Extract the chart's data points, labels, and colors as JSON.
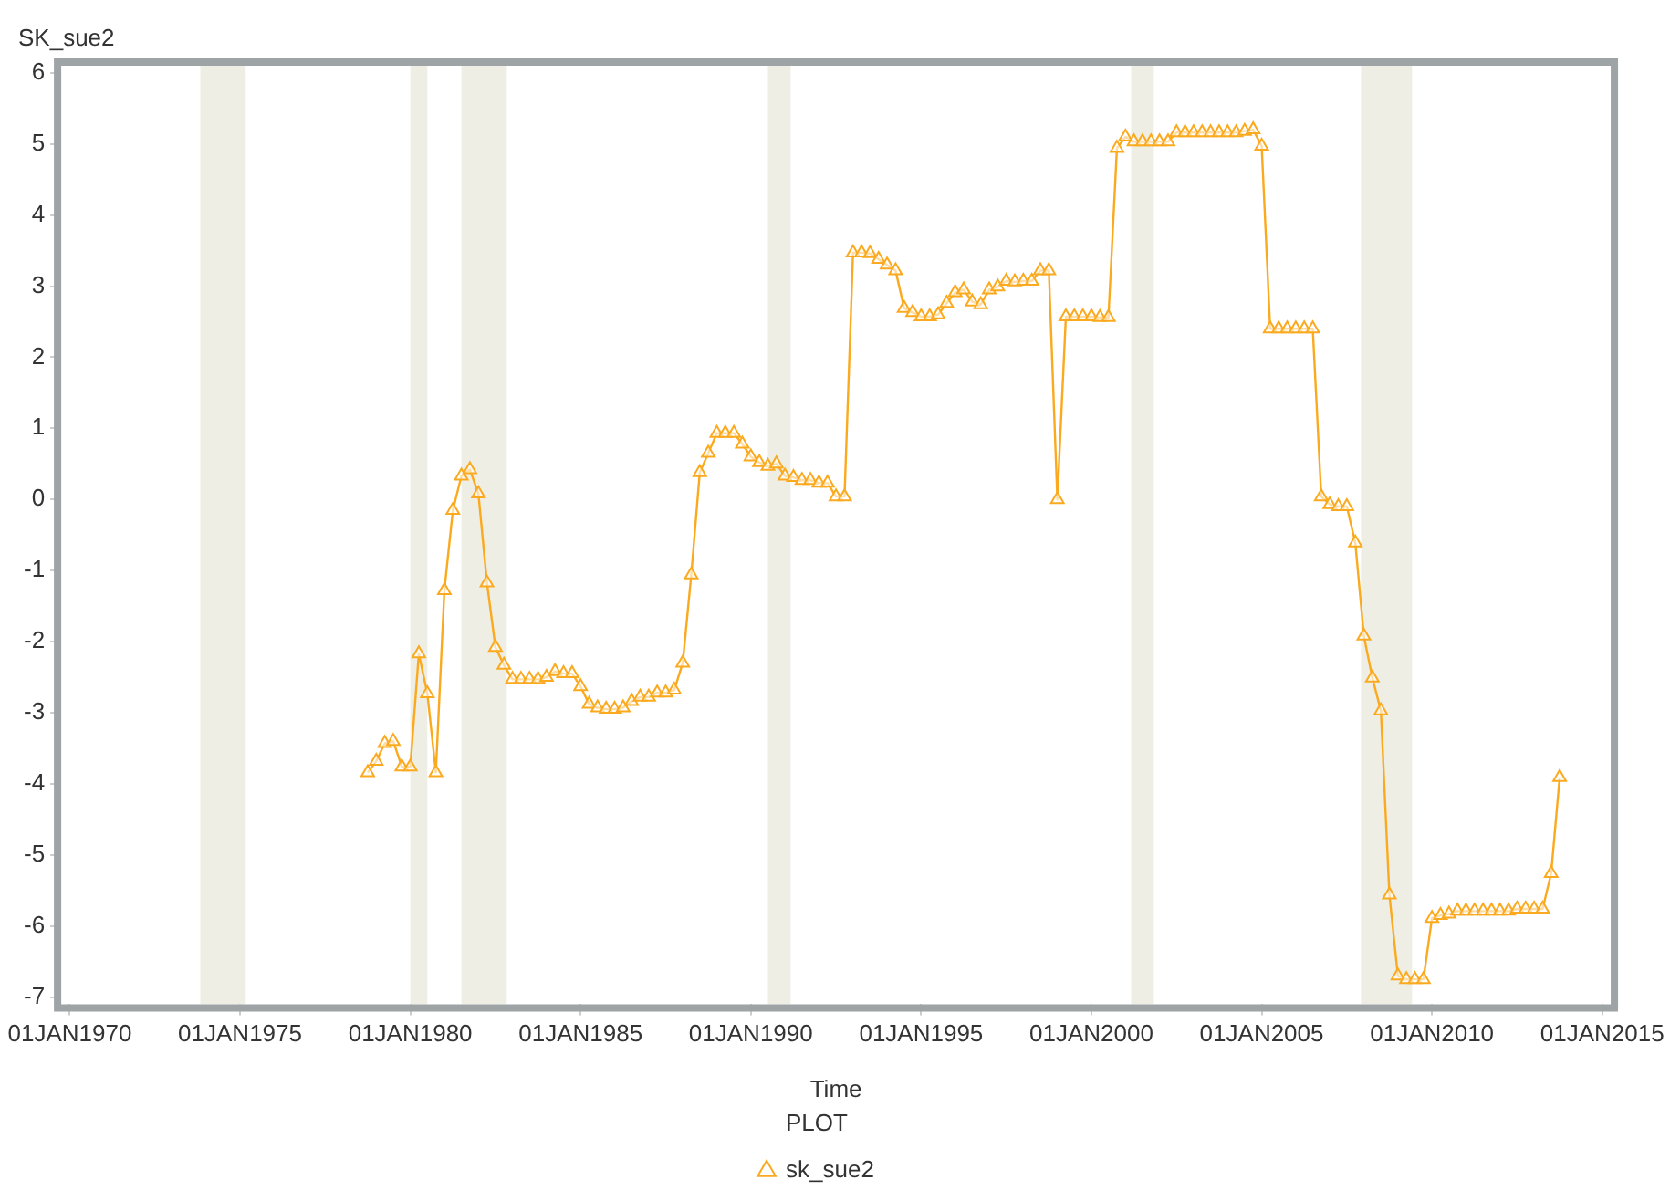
{
  "chart_data": {
    "type": "line",
    "xlabel": "Time",
    "ylabel": "SK_sue2",
    "legend_title": "PLOT",
    "legend": "bottom",
    "marker": "triangle",
    "line_style": "solid",
    "xlim": [
      "1969-10",
      "2015-04"
    ],
    "xticks": [
      {
        "value": "1970-01-01",
        "label": "01JAN1970"
      },
      {
        "value": "1975-01-01",
        "label": "01JAN1975"
      },
      {
        "value": "1980-01-01",
        "label": "01JAN1980"
      },
      {
        "value": "1985-01-01",
        "label": "01JAN1985"
      },
      {
        "value": "1990-01-01",
        "label": "01JAN1990"
      },
      {
        "value": "1995-01-01",
        "label": "01JAN1995"
      },
      {
        "value": "2000-01-01",
        "label": "01JAN2000"
      },
      {
        "value": "2005-01-01",
        "label": "01JAN2005"
      },
      {
        "value": "2010-01-01",
        "label": "01JAN2010"
      },
      {
        "value": "2015-01-01",
        "label": "01JAN2015"
      }
    ],
    "ylim": [
      -7.1,
      6.1
    ],
    "yticks": [
      -7,
      -6,
      -5,
      -4,
      -3,
      -2,
      -1,
      0,
      1,
      2,
      3,
      4,
      5,
      6
    ],
    "bands": [
      {
        "axis": "x",
        "from": "1973-11",
        "to": "1975-03",
        "color": "#eeeee4"
      },
      {
        "axis": "x",
        "from": "1980-01",
        "to": "1980-07",
        "color": "#eeeee4"
      },
      {
        "axis": "x",
        "from": "1981-07",
        "to": "1982-11",
        "color": "#eeeee4"
      },
      {
        "axis": "x",
        "from": "1990-07",
        "to": "1991-03",
        "color": "#eeeee4"
      },
      {
        "axis": "x",
        "from": "2001-03",
        "to": "2001-11",
        "color": "#eeeee4"
      },
      {
        "axis": "x",
        "from": "2007-12",
        "to": "2009-06",
        "color": "#eeeee4"
      }
    ],
    "x": [
      "1978-10",
      "1979-01",
      "1979-04",
      "1979-07",
      "1979-10",
      "1980-01",
      "1980-04",
      "1980-07",
      "1980-10",
      "1981-01",
      "1981-04",
      "1981-07",
      "1981-10",
      "1982-01",
      "1982-04",
      "1982-07",
      "1982-10",
      "1983-01",
      "1983-04",
      "1983-07",
      "1983-10",
      "1984-01",
      "1984-04",
      "1984-07",
      "1984-10",
      "1985-01",
      "1985-04",
      "1985-07",
      "1985-10",
      "1986-01",
      "1986-04",
      "1986-07",
      "1986-10",
      "1987-01",
      "1987-04",
      "1987-07",
      "1987-10",
      "1988-01",
      "1988-04",
      "1988-07",
      "1988-10",
      "1989-01",
      "1989-04",
      "1989-07",
      "1989-10",
      "1990-01",
      "1990-04",
      "1990-07",
      "1990-10",
      "1991-01",
      "1991-04",
      "1991-07",
      "1991-10",
      "1992-01",
      "1992-04",
      "1992-07",
      "1992-10",
      "1993-01",
      "1993-04",
      "1993-07",
      "1993-10",
      "1994-01",
      "1994-04",
      "1994-07",
      "1994-10",
      "1995-01",
      "1995-04",
      "1995-07",
      "1995-10",
      "1996-01",
      "1996-04",
      "1996-07",
      "1996-10",
      "1997-01",
      "1997-04",
      "1997-07",
      "1997-10",
      "1998-01",
      "1998-04",
      "1998-07",
      "1998-10",
      "1999-01",
      "1999-04",
      "1999-07",
      "1999-10",
      "2000-01",
      "2000-04",
      "2000-07",
      "2000-10",
      "2001-01",
      "2001-04",
      "2001-07",
      "2001-10",
      "2002-01",
      "2002-04",
      "2002-07",
      "2002-10",
      "2003-01",
      "2003-04",
      "2003-07",
      "2003-10",
      "2004-01",
      "2004-04",
      "2004-07",
      "2004-10",
      "2005-01",
      "2005-04",
      "2005-07",
      "2005-10",
      "2006-01",
      "2006-04",
      "2006-07",
      "2006-10",
      "2007-01",
      "2007-04",
      "2007-07",
      "2007-10",
      "2008-01",
      "2008-04",
      "2008-07",
      "2008-10",
      "2009-01",
      "2009-04",
      "2009-07",
      "2009-10",
      "2010-01",
      "2010-04",
      "2010-07",
      "2010-10",
      "2011-01",
      "2011-04",
      "2011-07",
      "2011-10",
      "2012-01",
      "2012-04",
      "2012-07",
      "2012-10",
      "2013-01",
      "2013-04",
      "2013-07",
      "2013-10"
    ],
    "series": [
      {
        "name": "sk_sue2",
        "color": "#fbaa1f",
        "values": [
          -3.84,
          -3.68,
          -3.43,
          -3.4,
          -3.76,
          -3.76,
          -2.17,
          -2.73,
          -3.84,
          -1.28,
          -0.15,
          0.33,
          0.42,
          0.08,
          -1.17,
          -2.08,
          -2.33,
          -2.53,
          -2.53,
          -2.53,
          -2.53,
          -2.5,
          -2.42,
          -2.45,
          -2.45,
          -2.63,
          -2.88,
          -2.93,
          -2.95,
          -2.95,
          -2.93,
          -2.84,
          -2.78,
          -2.78,
          -2.72,
          -2.72,
          -2.68,
          -2.3,
          -1.06,
          0.38,
          0.65,
          0.93,
          0.93,
          0.93,
          0.78,
          0.6,
          0.52,
          0.47,
          0.5,
          0.33,
          0.31,
          0.27,
          0.27,
          0.23,
          0.23,
          0.04,
          0.04,
          3.47,
          3.47,
          3.46,
          3.38,
          3.3,
          3.22,
          2.69,
          2.63,
          2.57,
          2.57,
          2.6,
          2.76,
          2.91,
          2.95,
          2.78,
          2.74,
          2.95,
          2.99,
          3.07,
          3.06,
          3.07,
          3.07,
          3.22,
          3.22,
          0,
          2.57,
          2.57,
          2.57,
          2.57,
          2.56,
          2.56,
          4.94,
          5.1,
          5.03,
          5.03,
          5.03,
          5.03,
          5.03,
          5.16,
          5.16,
          5.16,
          5.16,
          5.16,
          5.16,
          5.16,
          5.16,
          5.18,
          5.2,
          4.97,
          2.4,
          2.4,
          2.4,
          2.4,
          2.4,
          2.4,
          0.04,
          -0.07,
          -0.1,
          -0.1,
          -0.61,
          -1.92,
          -2.51,
          -2.97,
          -5.56,
          -6.7,
          -6.75,
          -6.75,
          -6.75,
          -5.89,
          -5.85,
          -5.83,
          -5.79,
          -5.79,
          -5.79,
          -5.79,
          -5.79,
          -5.79,
          -5.79,
          -5.76,
          -5.76,
          -5.76,
          -5.76,
          -5.26,
          -3.91
        ]
      }
    ]
  }
}
